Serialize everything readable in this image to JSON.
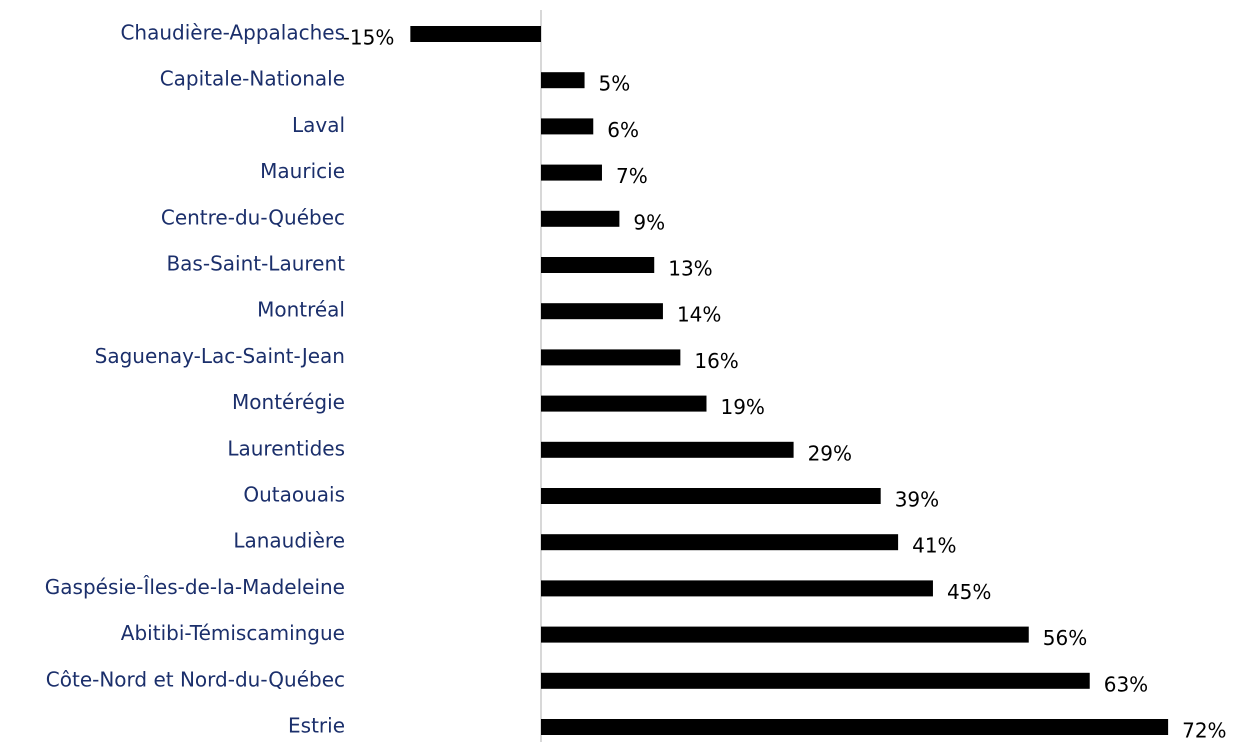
{
  "chart_data": {
    "type": "bar",
    "orientation": "horizontal",
    "categories": [
      "Chaudière-Appalaches",
      "Capitale-Nationale",
      "Laval",
      "Mauricie",
      "Centre-du-Québec",
      "Bas-Saint-Laurent",
      "Montréal",
      "Saguenay-Lac-Saint-Jean",
      "Montérégie",
      "Laurentides",
      "Outaouais",
      "Lanaudière",
      "Gaspésie-Îles-de-la-Madeleine",
      "Abitibi-Témiscamingue",
      "Côte-Nord et Nord-du-Québec",
      "Estrie"
    ],
    "values": [
      -15,
      5,
      6,
      7,
      9,
      13,
      14,
      16,
      19,
      29,
      39,
      41,
      45,
      56,
      63,
      72
    ],
    "value_labels": [
      "-15%",
      "5%",
      "6%",
      "7%",
      "9%",
      "13%",
      "14%",
      "16%",
      "19%",
      "29%",
      "39%",
      "41%",
      "45%",
      "56%",
      "63%",
      "72%"
    ],
    "color": "#000000",
    "label_color": "#1b2f6b"
  }
}
